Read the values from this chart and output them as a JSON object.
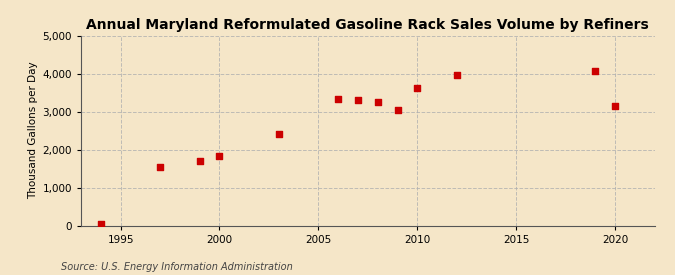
{
  "title": "Annual Maryland Reformulated Gasoline Rack Sales Volume by Refiners",
  "ylabel": "Thousand Gallons per Day",
  "source": "Source: U.S. Energy Information Administration",
  "background_color": "#f5e6c8",
  "marker_color": "#cc0000",
  "grid_color": "#b0b0b0",
  "xlim": [
    1993,
    2022
  ],
  "ylim": [
    0,
    5000
  ],
  "xticks": [
    1995,
    2000,
    2005,
    2010,
    2015,
    2020
  ],
  "yticks": [
    0,
    1000,
    2000,
    3000,
    4000,
    5000
  ],
  "years": [
    1994,
    1997,
    1999,
    2000,
    2003,
    2006,
    2007,
    2008,
    2009,
    2010,
    2012,
    2019,
    2020
  ],
  "values": [
    50,
    1530,
    1700,
    1830,
    2420,
    3340,
    3320,
    3250,
    3050,
    3620,
    3960,
    4060,
    3160
  ],
  "title_fontsize": 10,
  "ylabel_fontsize": 7.5,
  "tick_fontsize": 7.5,
  "source_fontsize": 7
}
